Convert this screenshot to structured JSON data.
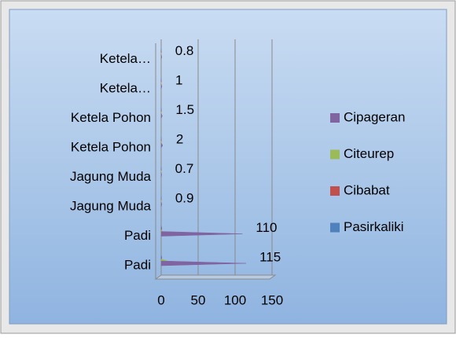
{
  "chart_data": {
    "type": "bar",
    "orientation": "horizontal",
    "style": "3d-cone",
    "categories": [
      "Ketela…",
      "Ketela…",
      "Ketela Pohon",
      "Ketela Pohon",
      "Jagung Muda",
      "Jagung Muda",
      "Padi",
      "Padi"
    ],
    "series": [
      {
        "name": "Pasirkaliki",
        "color": "#4f81bd",
        "values": [
          0.3,
          0.3,
          0.4,
          0.4,
          0.3,
          0.3,
          1,
          1
        ]
      },
      {
        "name": "Cibabat",
        "color": "#c0504d",
        "values": [
          0.3,
          0.3,
          0.4,
          0.4,
          0.3,
          0.3,
          1,
          1
        ]
      },
      {
        "name": "Citeurep",
        "color": "#9bbb59",
        "values": [
          0.4,
          0.4,
          0.5,
          0.5,
          0.4,
          0.4,
          2,
          10
        ]
      },
      {
        "name": "Cipageran",
        "color": "#8064a2",
        "values": [
          0.8,
          1,
          1.5,
          2,
          0.7,
          0.9,
          110,
          115
        ],
        "data_labels": true
      }
    ],
    "xlim": [
      0,
      150
    ],
    "xticks": [
      0,
      50,
      100,
      150
    ],
    "grid": true,
    "legend": "right"
  }
}
